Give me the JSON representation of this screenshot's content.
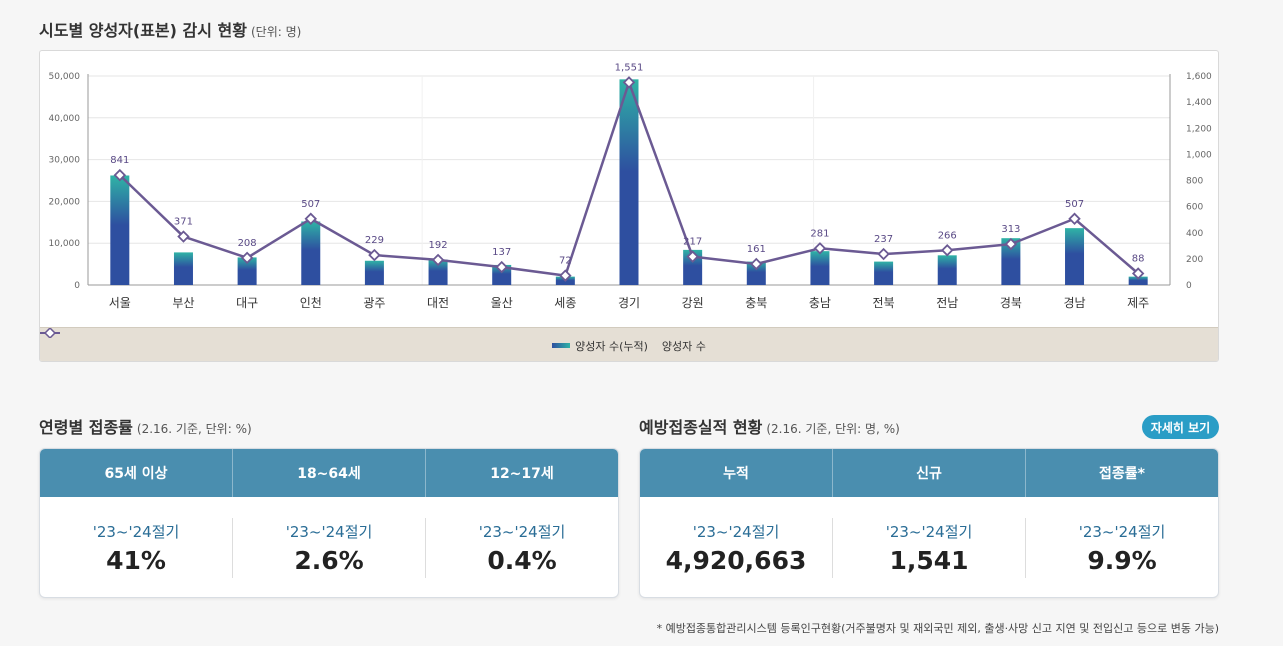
{
  "chart_section": {
    "title": "시도별 양성자(표본) 감시 현황",
    "unit": "(단위: 명)"
  },
  "chart_data": {
    "type": "bar+line",
    "categories": [
      "서울",
      "부산",
      "대구",
      "인천",
      "광주",
      "대전",
      "울산",
      "세종",
      "경기",
      "강원",
      "충북",
      "충남",
      "전북",
      "전남",
      "경북",
      "경남",
      "제주"
    ],
    "series": [
      {
        "name": "양성자 수(누적)",
        "type": "bar",
        "axis": "left",
        "values": [
          26200,
          7800,
          6600,
          15200,
          5800,
          6100,
          4800,
          2000,
          49200,
          8400,
          5600,
          8100,
          5600,
          7100,
          11200,
          13600,
          2000
        ]
      },
      {
        "name": "양성자 수",
        "type": "line",
        "axis": "right",
        "values": [
          841,
          371,
          208,
          507,
          229,
          192,
          137,
          72,
          1551,
          217,
          161,
          281,
          237,
          266,
          313,
          507,
          88
        ]
      }
    ],
    "left_axis": {
      "ylim": [
        0,
        50000
      ],
      "ticks": [
        "0",
        "10,000",
        "20,000",
        "30,000",
        "40,000",
        "50,000"
      ]
    },
    "right_axis": {
      "ylim": [
        0,
        1600
      ],
      "ticks": [
        "0",
        "200",
        "400",
        "600",
        "800",
        "1,000",
        "1,200",
        "1,400",
        "1,600"
      ]
    },
    "data_labels": [
      "841",
      "371",
      "208",
      "507",
      "229",
      "192",
      "137",
      "72",
      "1,551",
      "217",
      "161",
      "281",
      "237",
      "266",
      "313",
      "507",
      "88"
    ],
    "colors": {
      "bar_bottom": "#2e4fa0",
      "bar_top": "#2fb3a6",
      "line": "#6b5a93"
    },
    "legend_placement": "bottom-center"
  },
  "age_section": {
    "title": "연령별 접종률",
    "sub": "(2.16. 기준, 단위: %)",
    "columns": [
      "65세 이상",
      "18~64세",
      "12~17세"
    ],
    "cells": [
      {
        "period": "'23~'24절기",
        "value": "41%"
      },
      {
        "period": "'23~'24절기",
        "value": "2.6%"
      },
      {
        "period": "'23~'24절기",
        "value": "0.4%"
      }
    ]
  },
  "perf_section": {
    "title": "예방접종실적 현황",
    "sub": "(2.16. 기준, 단위: 명, %)",
    "detail_button": "자세히 보기",
    "columns": [
      "누적",
      "신규",
      "접종률*"
    ],
    "cells": [
      {
        "period": "'23~'24절기",
        "value": "4,920,663"
      },
      {
        "period": "'23~'24절기",
        "value": "1,541"
      },
      {
        "period": "'23~'24절기",
        "value": "9.9%"
      }
    ]
  },
  "footnote": "* 예방접종통합관리시스템 등록인구현황(거주불명자 및 재외국민 제외, 출생·사망 신고 지연 및 전입신고 등으로 변동 가능)"
}
